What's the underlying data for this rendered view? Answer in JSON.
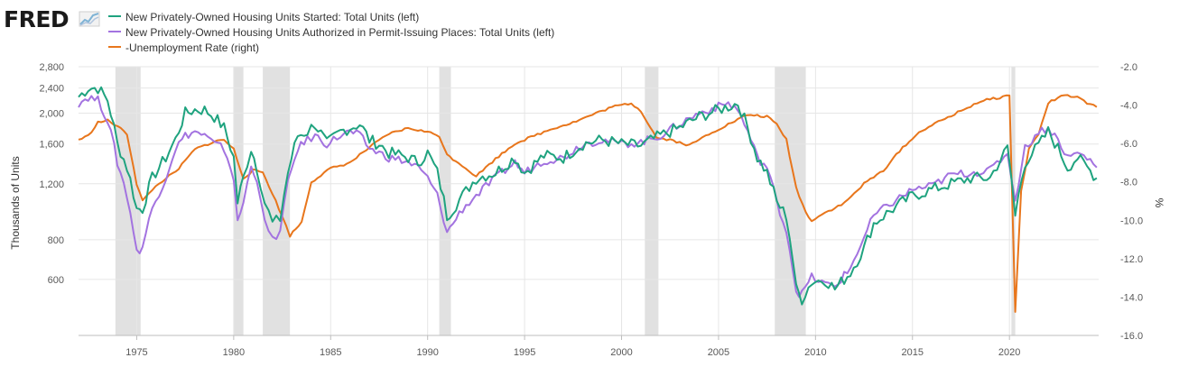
{
  "brand": {
    "name": "FRED"
  },
  "colors": {
    "starts": "#1fa37f",
    "permits": "#a373e0",
    "unemployment": "#e8761c",
    "recession": "#e1e1e1",
    "grid": "#e6e6e6"
  },
  "chart_data": {
    "type": "line",
    "legend_placement": "top-left",
    "grid": true,
    "x_range": [
      1972.0,
      2024.6
    ],
    "x_ticks": [
      "1975",
      "1980",
      "1985",
      "1990",
      "1995",
      "2000",
      "2005",
      "2010",
      "2015",
      "2020"
    ],
    "left_axis": {
      "title": "Thousands of Units",
      "scale": "log",
      "range": [
        400,
        2800
      ],
      "ticks": [
        "600",
        "800",
        "1,200",
        "1,600",
        "2,000",
        "2,400",
        "2,800"
      ]
    },
    "right_axis": {
      "title": "%",
      "scale": "linear",
      "range": [
        -16.0,
        -2.0
      ],
      "ticks": [
        "-2.0",
        "-4.0",
        "-6.0",
        "-8.0",
        "-10.0",
        "-12.0",
        "-14.0",
        "-16.0"
      ]
    },
    "recessions": [
      [
        1973.9,
        1975.2
      ],
      [
        1980.0,
        1980.5
      ],
      [
        1981.5,
        1982.9
      ],
      [
        1990.6,
        1991.2
      ],
      [
        2001.2,
        2001.9
      ],
      [
        2007.9,
        2009.5
      ],
      [
        2020.1,
        2020.3
      ]
    ],
    "series": [
      {
        "name": "New Privately-Owned Housing Units Started: Total Units (left)",
        "axis": "left",
        "color": "#1fa37f",
        "points": [
          [
            1972.0,
            2250
          ],
          [
            1972.5,
            2400
          ],
          [
            1973.0,
            2400
          ],
          [
            1973.5,
            2200
          ],
          [
            1974.0,
            1600
          ],
          [
            1974.5,
            1350
          ],
          [
            1975.0,
            1000
          ],
          [
            1975.3,
            1000
          ],
          [
            1975.8,
            1250
          ],
          [
            1976.5,
            1450
          ],
          [
            1977.0,
            1650
          ],
          [
            1977.5,
            2000
          ],
          [
            1978.0,
            2050
          ],
          [
            1978.5,
            2050
          ],
          [
            1979.0,
            1950
          ],
          [
            1979.5,
            1800
          ],
          [
            1980.0,
            1450
          ],
          [
            1980.2,
            1050
          ],
          [
            1980.5,
            1250
          ],
          [
            1980.9,
            1550
          ],
          [
            1981.2,
            1350
          ],
          [
            1981.6,
            1050
          ],
          [
            1982.0,
            900
          ],
          [
            1982.4,
            930
          ],
          [
            1982.8,
            1300
          ],
          [
            1983.3,
            1700
          ],
          [
            1983.8,
            1750
          ],
          [
            1984.2,
            1850
          ],
          [
            1984.8,
            1600
          ],
          [
            1985.5,
            1750
          ],
          [
            1986.0,
            1800
          ],
          [
            1986.5,
            1850
          ],
          [
            1987.0,
            1650
          ],
          [
            1987.5,
            1600
          ],
          [
            1988.0,
            1500
          ],
          [
            1988.5,
            1480
          ],
          [
            1989.0,
            1450
          ],
          [
            1989.5,
            1400
          ],
          [
            1990.0,
            1500
          ],
          [
            1990.5,
            1300
          ],
          [
            1991.0,
            950
          ],
          [
            1991.3,
            1000
          ],
          [
            1991.8,
            1100
          ],
          [
            1992.5,
            1250
          ],
          [
            1993.5,
            1300
          ],
          [
            1994.5,
            1450
          ],
          [
            1995.0,
            1300
          ],
          [
            1996.0,
            1470
          ],
          [
            1997.0,
            1450
          ],
          [
            1998.0,
            1600
          ],
          [
            1999.0,
            1650
          ],
          [
            2000.0,
            1600
          ],
          [
            2001.0,
            1580
          ],
          [
            2002.0,
            1700
          ],
          [
            2003.0,
            1800
          ],
          [
            2004.0,
            1950
          ],
          [
            2005.0,
            2050
          ],
          [
            2005.5,
            2100
          ],
          [
            2006.0,
            2150
          ],
          [
            2006.5,
            1800
          ],
          [
            2007.0,
            1450
          ],
          [
            2007.5,
            1300
          ],
          [
            2008.0,
            1050
          ],
          [
            2008.5,
            950
          ],
          [
            2009.0,
            560
          ],
          [
            2009.3,
            520
          ],
          [
            2009.8,
            590
          ],
          [
            2010.5,
            600
          ],
          [
            2011.0,
            560
          ],
          [
            2011.8,
            630
          ],
          [
            2012.5,
            750
          ],
          [
            2013.0,
            900
          ],
          [
            2014.0,
            1000
          ],
          [
            2015.0,
            1100
          ],
          [
            2016.0,
            1150
          ],
          [
            2017.0,
            1200
          ],
          [
            2018.0,
            1250
          ],
          [
            2019.0,
            1250
          ],
          [
            2019.9,
            1550
          ],
          [
            2020.3,
            950
          ],
          [
            2020.8,
            1400
          ],
          [
            2021.5,
            1580
          ],
          [
            2022.0,
            1750
          ],
          [
            2022.5,
            1550
          ],
          [
            2023.0,
            1350
          ],
          [
            2023.5,
            1450
          ],
          [
            2024.0,
            1350
          ],
          [
            2024.5,
            1250
          ]
        ]
      },
      {
        "name": "New Privately-Owned Housing Units Authorized in Permit-Issuing Places: Total Units (left)",
        "axis": "left",
        "color": "#a373e0",
        "points": [
          [
            1972.0,
            2150
          ],
          [
            1972.5,
            2250
          ],
          [
            1973.0,
            2200
          ],
          [
            1973.5,
            1900
          ],
          [
            1974.0,
            1400
          ],
          [
            1974.5,
            1100
          ],
          [
            1975.0,
            730
          ],
          [
            1975.3,
            760
          ],
          [
            1975.8,
            1000
          ],
          [
            1976.5,
            1250
          ],
          [
            1977.0,
            1550
          ],
          [
            1977.5,
            1700
          ],
          [
            1978.0,
            1750
          ],
          [
            1978.5,
            1700
          ],
          [
            1979.0,
            1600
          ],
          [
            1979.5,
            1550
          ],
          [
            1980.0,
            1250
          ],
          [
            1980.2,
            900
          ],
          [
            1980.5,
            1050
          ],
          [
            1980.9,
            1350
          ],
          [
            1981.2,
            1250
          ],
          [
            1981.6,
            900
          ],
          [
            1982.0,
            800
          ],
          [
            1982.4,
            850
          ],
          [
            1982.8,
            1200
          ],
          [
            1983.3,
            1550
          ],
          [
            1983.8,
            1650
          ],
          [
            1984.2,
            1700
          ],
          [
            1984.8,
            1600
          ],
          [
            1985.5,
            1700
          ],
          [
            1986.0,
            1750
          ],
          [
            1986.5,
            1700
          ],
          [
            1987.0,
            1550
          ],
          [
            1987.5,
            1500
          ],
          [
            1988.0,
            1450
          ],
          [
            1988.5,
            1430
          ],
          [
            1989.0,
            1400
          ],
          [
            1989.5,
            1350
          ],
          [
            1990.0,
            1250
          ],
          [
            1990.5,
            1100
          ],
          [
            1991.0,
            840
          ],
          [
            1991.3,
            900
          ],
          [
            1991.8,
            1000
          ],
          [
            1992.5,
            1100
          ],
          [
            1993.5,
            1250
          ],
          [
            1994.5,
            1400
          ],
          [
            1995.0,
            1300
          ],
          [
            1996.0,
            1420
          ],
          [
            1997.0,
            1450
          ],
          [
            1998.0,
            1600
          ],
          [
            1999.0,
            1650
          ],
          [
            2000.0,
            1600
          ],
          [
            2001.0,
            1620
          ],
          [
            2002.0,
            1700
          ],
          [
            2003.0,
            1850
          ],
          [
            2004.0,
            2000
          ],
          [
            2005.0,
            2100
          ],
          [
            2005.5,
            2150
          ],
          [
            2006.0,
            2050
          ],
          [
            2006.5,
            1750
          ],
          [
            2007.0,
            1450
          ],
          [
            2007.5,
            1350
          ],
          [
            2008.0,
            1050
          ],
          [
            2008.5,
            850
          ],
          [
            2009.0,
            550
          ],
          [
            2009.3,
            540
          ],
          [
            2009.8,
            610
          ],
          [
            2010.5,
            580
          ],
          [
            2011.0,
            570
          ],
          [
            2011.8,
            650
          ],
          [
            2012.5,
            810
          ],
          [
            2013.0,
            950
          ],
          [
            2014.0,
            1050
          ],
          [
            2015.0,
            1150
          ],
          [
            2016.0,
            1180
          ],
          [
            2017.0,
            1280
          ],
          [
            2018.0,
            1300
          ],
          [
            2019.0,
            1320
          ],
          [
            2019.9,
            1500
          ],
          [
            2020.3,
            1050
          ],
          [
            2020.8,
            1550
          ],
          [
            2021.5,
            1750
          ],
          [
            2022.0,
            1800
          ],
          [
            2022.5,
            1650
          ],
          [
            2023.0,
            1450
          ],
          [
            2023.5,
            1500
          ],
          [
            2024.0,
            1450
          ],
          [
            2024.5,
            1350
          ]
        ]
      },
      {
        "name": "-Unemployment Rate (right)",
        "axis": "right",
        "color": "#e8761c",
        "points": [
          [
            1972.0,
            -5.8
          ],
          [
            1972.5,
            -5.6
          ],
          [
            1973.0,
            -4.9
          ],
          [
            1973.5,
            -4.8
          ],
          [
            1974.0,
            -5.1
          ],
          [
            1974.5,
            -5.5
          ],
          [
            1975.0,
            -8.1
          ],
          [
            1975.3,
            -9.0
          ],
          [
            1975.8,
            -8.4
          ],
          [
            1976.5,
            -7.8
          ],
          [
            1977.0,
            -7.5
          ],
          [
            1978.0,
            -6.3
          ],
          [
            1979.0,
            -5.9
          ],
          [
            1979.5,
            -5.8
          ],
          [
            1980.0,
            -6.3
          ],
          [
            1980.5,
            -7.8
          ],
          [
            1981.0,
            -7.4
          ],
          [
            1981.5,
            -7.5
          ],
          [
            1982.0,
            -8.6
          ],
          [
            1982.5,
            -9.8
          ],
          [
            1982.9,
            -10.8
          ],
          [
            1983.5,
            -10.1
          ],
          [
            1984.0,
            -8.0
          ],
          [
            1985.0,
            -7.3
          ],
          [
            1986.0,
            -7.0
          ],
          [
            1987.0,
            -6.2
          ],
          [
            1988.0,
            -5.5
          ],
          [
            1989.0,
            -5.2
          ],
          [
            1990.0,
            -5.4
          ],
          [
            1990.6,
            -5.6
          ],
          [
            1991.0,
            -6.6
          ],
          [
            1991.6,
            -7.0
          ],
          [
            1992.5,
            -7.7
          ],
          [
            1993.5,
            -6.8
          ],
          [
            1994.5,
            -6.0
          ],
          [
            1995.5,
            -5.6
          ],
          [
            1996.5,
            -5.2
          ],
          [
            1997.5,
            -4.9
          ],
          [
            1998.5,
            -4.5
          ],
          [
            1999.5,
            -4.1
          ],
          [
            2000.5,
            -3.9
          ],
          [
            2001.0,
            -4.3
          ],
          [
            2001.8,
            -5.7
          ],
          [
            2002.5,
            -5.8
          ],
          [
            2003.5,
            -6.1
          ],
          [
            2004.5,
            -5.5
          ],
          [
            2005.5,
            -5.0
          ],
          [
            2006.5,
            -4.5
          ],
          [
            2007.5,
            -4.6
          ],
          [
            2008.0,
            -5.0
          ],
          [
            2008.5,
            -5.8
          ],
          [
            2009.0,
            -8.3
          ],
          [
            2009.5,
            -9.6
          ],
          [
            2009.8,
            -10.0
          ],
          [
            2010.5,
            -9.6
          ],
          [
            2011.5,
            -9.1
          ],
          [
            2012.5,
            -8.1
          ],
          [
            2013.5,
            -7.4
          ],
          [
            2014.5,
            -6.2
          ],
          [
            2015.5,
            -5.3
          ],
          [
            2016.5,
            -4.8
          ],
          [
            2017.5,
            -4.3
          ],
          [
            2018.5,
            -3.8
          ],
          [
            2019.5,
            -3.6
          ],
          [
            2020.0,
            -3.5
          ],
          [
            2020.3,
            -14.8
          ],
          [
            2020.6,
            -8.5
          ],
          [
            2021.0,
            -6.3
          ],
          [
            2021.5,
            -5.5
          ],
          [
            2022.0,
            -3.9
          ],
          [
            2022.5,
            -3.6
          ],
          [
            2023.0,
            -3.5
          ],
          [
            2023.5,
            -3.6
          ],
          [
            2024.0,
            -3.9
          ],
          [
            2024.5,
            -4.1
          ]
        ]
      }
    ]
  }
}
